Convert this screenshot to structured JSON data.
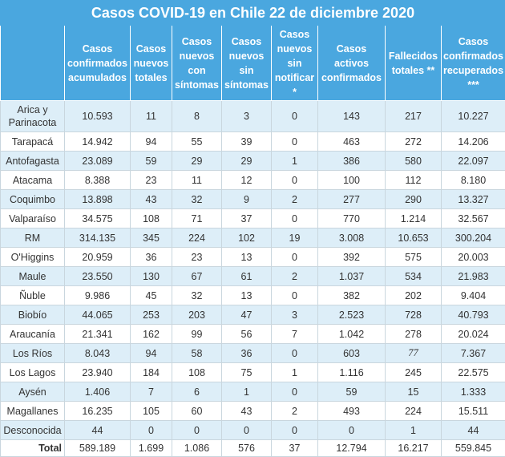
{
  "title": "Casos COVID-19 en Chile 22 de diciembre 2020",
  "headers": [
    "",
    "Casos confirmados acumulados",
    "Casos nuevos totales",
    "Casos nuevos con síntomas",
    "Casos nuevos sin síntomas",
    "Casos nuevos sin notificar *",
    "Casos activos confirmados",
    "Fallecidos totales **",
    "Casos confirmados recuperados ***"
  ],
  "rows": [
    [
      "Arica y Parinacota",
      "10.593",
      "11",
      "8",
      "3",
      "0",
      "143",
      "217",
      "10.227"
    ],
    [
      "Tarapacá",
      "14.942",
      "94",
      "55",
      "39",
      "0",
      "463",
      "272",
      "14.206"
    ],
    [
      "Antofagasta",
      "23.089",
      "59",
      "29",
      "29",
      "1",
      "386",
      "580",
      "22.097"
    ],
    [
      "Atacama",
      "8.388",
      "23",
      "11",
      "12",
      "0",
      "100",
      "112",
      "8.180"
    ],
    [
      "Coquimbo",
      "13.898",
      "43",
      "32",
      "9",
      "2",
      "277",
      "290",
      "13.327"
    ],
    [
      "Valparaíso",
      "34.575",
      "108",
      "71",
      "37",
      "0",
      "770",
      "1.214",
      "32.567"
    ],
    [
      "RM",
      "314.135",
      "345",
      "224",
      "102",
      "19",
      "3.008",
      "10.653",
      "300.204"
    ],
    [
      "O'Higgins",
      "20.959",
      "36",
      "23",
      "13",
      "0",
      "392",
      "575",
      "20.003"
    ],
    [
      "Maule",
      "23.550",
      "130",
      "67",
      "61",
      "2",
      "1.037",
      "534",
      "21.983"
    ],
    [
      "Ñuble",
      "9.986",
      "45",
      "32",
      "13",
      "0",
      "382",
      "202",
      "9.404"
    ],
    [
      "Biobío",
      "44.065",
      "253",
      "203",
      "47",
      "3",
      "2.523",
      "728",
      "40.793"
    ],
    [
      "Araucanía",
      "21.341",
      "162",
      "99",
      "56",
      "7",
      "1.042",
      "278",
      "20.024"
    ],
    [
      "Los Ríos",
      "8.043",
      "94",
      "58",
      "36",
      "0",
      "603",
      "77",
      "7.367"
    ],
    [
      "Los Lagos",
      "23.940",
      "184",
      "108",
      "75",
      "1",
      "1.116",
      "245",
      "22.575"
    ],
    [
      "Aysén",
      "1.406",
      "7",
      "6",
      "1",
      "0",
      "59",
      "15",
      "1.333"
    ],
    [
      "Magallanes",
      "16.235",
      "105",
      "60",
      "43",
      "2",
      "493",
      "224",
      "15.511"
    ],
    [
      "Desconocida",
      "44",
      "0",
      "0",
      "0",
      "0",
      "0",
      "1",
      "44"
    ]
  ],
  "total": [
    "Total",
    "589.189",
    "1.699",
    "1.086",
    "576",
    "37",
    "12.794",
    "16.217",
    "559.845"
  ]
}
